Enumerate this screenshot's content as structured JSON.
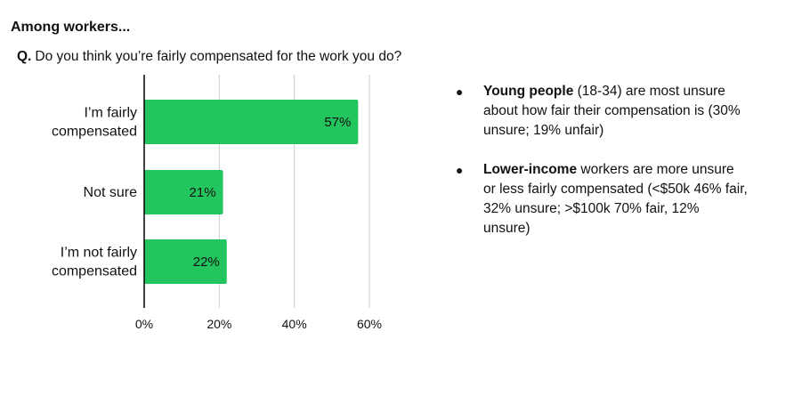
{
  "header": {
    "title": "Among workers...",
    "question_prefix": "Q.",
    "question_text": "Do you think you’re fairly compensated for the work you do?"
  },
  "notes": [
    {
      "bullet": "●",
      "bold": "Young people",
      "text": " (18-34) are most unsure about how fair their compensation is (30% unsure; 19% unfair)"
    },
    {
      "bullet": "●",
      "bold": "Lower-income",
      "text": " workers are more unsure or less fairly compensated (<$50k 46% fair, 32% unsure; >$100k 70% fair, 12% unsure)"
    }
  ],
  "colors": {
    "bar": "#22c55e",
    "grid": "#cccccc",
    "axis": "#000000",
    "text": "#111111"
  },
  "chart_data": {
    "type": "bar",
    "orientation": "horizontal",
    "categories": [
      [
        "I’m fairly",
        "compensated"
      ],
      [
        "Not sure"
      ],
      [
        "I’m not fairly",
        "compensated"
      ]
    ],
    "values": [
      57,
      21,
      22
    ],
    "value_labels": [
      "57%",
      "21%",
      "22%"
    ],
    "xlim": [
      0,
      60
    ],
    "xticks": [
      0,
      20,
      40,
      60
    ],
    "xtick_labels": [
      "0%",
      "20%",
      "40%",
      "60%"
    ],
    "grid": true,
    "legend": "none"
  }
}
